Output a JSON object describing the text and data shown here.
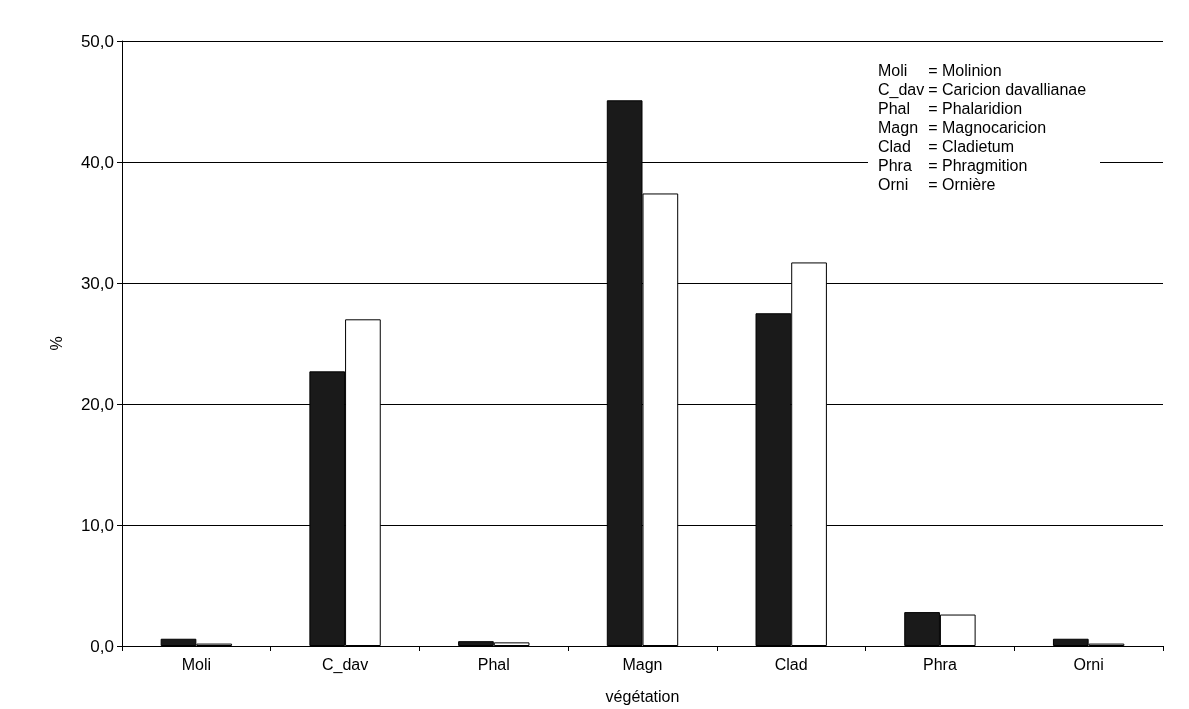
{
  "chart_data": {
    "type": "bar",
    "xlabel": "végétation",
    "ylabel": "%",
    "categories": [
      "Moli",
      "C_dav",
      "Phal",
      "Magn",
      "Clad",
      "Phra",
      "Orni"
    ],
    "series": [
      {
        "color": "#1a1a1a",
        "values": [
          0.6,
          22.7,
          0.4,
          45.1,
          27.5,
          2.8,
          0.6
        ]
      },
      {
        "color": "#ffffff",
        "values": [
          0.2,
          27.0,
          0.3,
          37.4,
          31.7,
          2.6,
          0.2
        ]
      }
    ],
    "ylim": [
      0,
      50
    ],
    "yticks": [
      {
        "value": 0,
        "label": "0,0"
      },
      {
        "value": 10,
        "label": "10,0"
      },
      {
        "value": 20,
        "label": "20,0"
      },
      {
        "value": 30,
        "label": "30,0"
      },
      {
        "value": 40,
        "label": "40,0"
      },
      {
        "value": 50,
        "label": "50,0"
      }
    ],
    "grid": "y",
    "annotations": [
      "Moli = Molinion",
      "C_dav = Caricion davallianae",
      "Phal = Phalaridion",
      "Magn = Magnocaricion",
      "Clad = Cladietum",
      "Phra = Phragmition",
      "Orni = Ornière"
    ]
  }
}
